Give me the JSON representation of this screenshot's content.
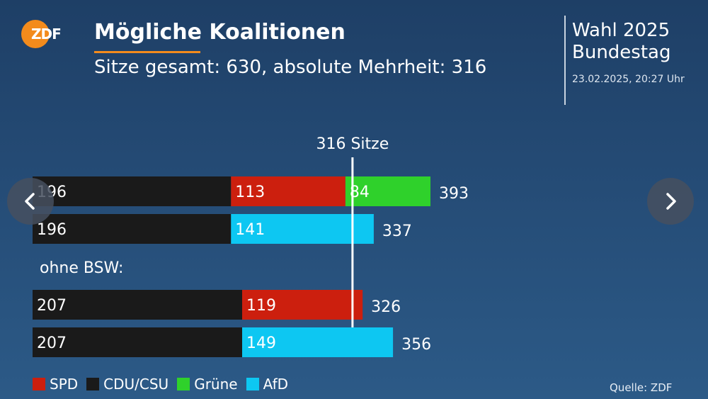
{
  "header": {
    "logo_text": "ZDF",
    "title": "Mögliche Koalitionen",
    "subtitle": "Sitze gesamt: 630, absolute Mehrheit: 316",
    "election": "Wahl 2025",
    "body": "Bundestag",
    "timestamp": "23.02.2025, 20:27 Uhr"
  },
  "footer": {
    "source": "Quelle: ZDF"
  },
  "colors": {
    "SPD": "#cc1f0e",
    "CDU/CSU": "#1a1a1a",
    "Grüne": "#2fd12b",
    "AfD": "#0dc7f2"
  },
  "legend": [
    {
      "label": "SPD",
      "color": "#cc1f0e"
    },
    {
      "label": "CDU/CSU",
      "color": "#1a1a1a"
    },
    {
      "label": "Grüne",
      "color": "#2fd12b"
    },
    {
      "label": "AfD",
      "color": "#0dc7f2"
    }
  ],
  "chart_data": {
    "type": "bar",
    "orientation": "horizontal-stacked",
    "threshold": {
      "value": 316,
      "label": "316 Sitze"
    },
    "group_label": "ohne BSW:",
    "rows": [
      {
        "segments": [
          {
            "party": "CDU/CSU",
            "value": 196
          },
          {
            "party": "SPD",
            "value": 113
          },
          {
            "party": "Grüne",
            "value": 84
          }
        ],
        "total": 393
      },
      {
        "segments": [
          {
            "party": "CDU/CSU",
            "value": 196
          },
          {
            "party": "AfD",
            "value": 141
          }
        ],
        "total": 337
      },
      {
        "segments": [
          {
            "party": "CDU/CSU",
            "value": 207
          },
          {
            "party": "SPD",
            "value": 119
          }
        ],
        "total": 326
      },
      {
        "segments": [
          {
            "party": "CDU/CSU",
            "value": 207
          },
          {
            "party": "AfD",
            "value": 149
          }
        ],
        "total": 356
      }
    ]
  }
}
